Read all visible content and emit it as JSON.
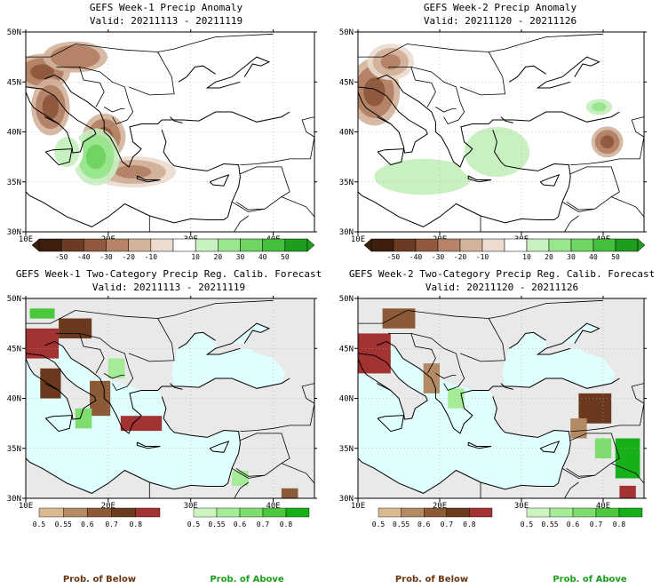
{
  "chart_data": [
    {
      "type": "heatmap",
      "title": "GEFS Week-1 Precip Anomaly",
      "subtitle": "Valid: 20211113 - 20211119",
      "lon_ticks": [
        "10E",
        "20E",
        "30E",
        "40E"
      ],
      "lat_ticks": [
        "30N",
        "35N",
        "40N",
        "45N",
        "50N"
      ],
      "colorbar": {
        "ticks": [
          "-50",
          "-40",
          "-30",
          "-20",
          "-10",
          "10",
          "20",
          "30",
          "40",
          "50"
        ],
        "colors": [
          "#3d1f10",
          "#6b3b24",
          "#8f5a3e",
          "#b58468",
          "#d3b39b",
          "#ecdccf",
          "#ffffff",
          "#c8f0c0",
          "#9ae68f",
          "#6fd462",
          "#44bf3c",
          "#1e9e1e"
        ]
      },
      "blobs": [
        {
          "lon": 12,
          "lat": 46,
          "rx": 2.6,
          "ry": 1.4,
          "value": -40
        },
        {
          "lon": 16,
          "lat": 47.5,
          "rx": 3,
          "ry": 1.2,
          "value": -30
        },
        {
          "lon": 13,
          "lat": 42.5,
          "rx": 1.8,
          "ry": 2.2,
          "value": -35
        },
        {
          "lon": 19.5,
          "lat": 39.5,
          "rx": 2,
          "ry": 1.8,
          "value": -35
        },
        {
          "lon": 23,
          "lat": 36,
          "rx": 4,
          "ry": 1.2,
          "value": -25
        },
        {
          "lon": 18.5,
          "lat": 37.5,
          "rx": 2.2,
          "ry": 2.2,
          "value": 35
        },
        {
          "lon": 15,
          "lat": 38,
          "rx": 1.5,
          "ry": 1.5,
          "value": 15
        }
      ]
    },
    {
      "type": "heatmap",
      "title": "GEFS Week-2 Precip Anomaly",
      "subtitle": "Valid: 20211120 - 20211126",
      "lon_ticks": [
        "10E",
        "20E",
        "30E",
        "40E"
      ],
      "lat_ticks": [
        "30N",
        "35N",
        "40N",
        "45N",
        "50N"
      ],
      "colorbar": {
        "ticks": [
          "-50",
          "-40",
          "-30",
          "-20",
          "-10",
          "10",
          "20",
          "30",
          "40",
          "50"
        ],
        "colors": [
          "#3d1f10",
          "#6b3b24",
          "#8f5a3e",
          "#b58468",
          "#d3b39b",
          "#ecdccf",
          "#ffffff",
          "#c8f0c0",
          "#9ae68f",
          "#6fd462",
          "#44bf3c",
          "#1e9e1e"
        ]
      },
      "blobs": [
        {
          "lon": 12,
          "lat": 44,
          "rx": 2.4,
          "ry": 2.6,
          "value": -40
        },
        {
          "lon": 14,
          "lat": 47,
          "rx": 2.2,
          "ry": 1.4,
          "value": -25
        },
        {
          "lon": 18,
          "lat": 35.5,
          "rx": 6,
          "ry": 1.8,
          "value": 15
        },
        {
          "lon": 27,
          "lat": 38,
          "rx": 4,
          "ry": 2.5,
          "value": 15
        },
        {
          "lon": 40.5,
          "lat": 39,
          "rx": 1.5,
          "ry": 1.2,
          "value": -40
        },
        {
          "lon": 39.5,
          "lat": 42.5,
          "rx": 1.6,
          "ry": 0.8,
          "value": 25
        }
      ]
    },
    {
      "type": "heatmap",
      "title": "GEFS Week-1 Two-Category Precip Reg. Calib. Forecast",
      "subtitle": "Valid: 20211113 - 20211119",
      "lon_ticks": [
        "10E",
        "20E",
        "30E",
        "40E"
      ],
      "lat_ticks": [
        "30N",
        "35N",
        "40N",
        "45N",
        "50N"
      ],
      "below_colorbar": {
        "ticks": [
          "0.5",
          "0.55",
          "0.6",
          "0.7",
          "0.8"
        ],
        "colors": [
          "#d9b98f",
          "#b48a64",
          "#8c5a37",
          "#6b3a1e",
          "#a33333"
        ]
      },
      "above_colorbar": {
        "ticks": [
          "0.5",
          "0.55",
          "0.6",
          "0.7",
          "0.8"
        ],
        "colors": [
          "#ccf5c0",
          "#a6ec98",
          "#7fdd70",
          "#4cc83f",
          "#18b018"
        ]
      },
      "cells": [
        {
          "lon": 12,
          "lat": 45.5,
          "w": 4,
          "h": 3,
          "category": "below",
          "prob": 0.8
        },
        {
          "lon": 16,
          "lat": 47,
          "w": 4,
          "h": 2,
          "category": "below",
          "prob": 0.7
        },
        {
          "lon": 13,
          "lat": 41.5,
          "w": 2.5,
          "h": 3,
          "category": "below",
          "prob": 0.7
        },
        {
          "lon": 19,
          "lat": 40,
          "w": 2.5,
          "h": 3.5,
          "category": "below",
          "prob": 0.6
        },
        {
          "lon": 24,
          "lat": 37.5,
          "w": 5,
          "h": 1.5,
          "category": "below",
          "prob": 0.8
        },
        {
          "lon": 17,
          "lat": 38,
          "w": 2,
          "h": 2,
          "category": "above",
          "prob": 0.6
        },
        {
          "lon": 12,
          "lat": 48.5,
          "w": 3,
          "h": 1,
          "category": "above",
          "prob": 0.7
        },
        {
          "lon": 21,
          "lat": 43,
          "w": 2,
          "h": 2,
          "category": "above",
          "prob": 0.55
        },
        {
          "lon": 36,
          "lat": 32,
          "w": 2,
          "h": 1.5,
          "category": "above",
          "prob": 0.55
        },
        {
          "lon": 42,
          "lat": 30.5,
          "w": 2,
          "h": 1,
          "category": "below",
          "prob": 0.6
        }
      ],
      "below_label": "Prob. of Below",
      "above_label": "Prob. of Above"
    },
    {
      "type": "heatmap",
      "title": "GEFS Week-2 Two-Category Precip Reg. Calib. Forecast",
      "subtitle": "Valid: 20211120 - 20211126",
      "lon_ticks": [
        "10E",
        "20E",
        "30E",
        "40E"
      ],
      "lat_ticks": [
        "30N",
        "35N",
        "40N",
        "45N",
        "50N"
      ],
      "below_colorbar": {
        "ticks": [
          "0.5",
          "0.55",
          "0.6",
          "0.7",
          "0.8"
        ],
        "colors": [
          "#d9b98f",
          "#b48a64",
          "#8c5a37",
          "#6b3a1e",
          "#a33333"
        ]
      },
      "above_colorbar": {
        "ticks": [
          "0.5",
          "0.55",
          "0.6",
          "0.7",
          "0.8"
        ],
        "colors": [
          "#ccf5c0",
          "#a6ec98",
          "#7fdd70",
          "#4cc83f",
          "#18b018"
        ]
      },
      "cells": [
        {
          "lon": 12,
          "lat": 44.5,
          "w": 4,
          "h": 4,
          "category": "below",
          "prob": 0.8
        },
        {
          "lon": 15,
          "lat": 48,
          "w": 4,
          "h": 2,
          "category": "below",
          "prob": 0.6
        },
        {
          "lon": 19,
          "lat": 42,
          "w": 2,
          "h": 3,
          "category": "below",
          "prob": 0.55
        },
        {
          "lon": 22,
          "lat": 40,
          "w": 2,
          "h": 2,
          "category": "above",
          "prob": 0.55
        },
        {
          "lon": 39,
          "lat": 39,
          "w": 4,
          "h": 3,
          "category": "below",
          "prob": 0.7
        },
        {
          "lon": 43,
          "lat": 34,
          "w": 3,
          "h": 4,
          "category": "above",
          "prob": 0.8
        },
        {
          "lon": 40,
          "lat": 35,
          "w": 2,
          "h": 2,
          "category": "above",
          "prob": 0.6
        },
        {
          "lon": 43,
          "lat": 30.5,
          "w": 2,
          "h": 1.5,
          "category": "below",
          "prob": 0.8
        },
        {
          "lon": 37,
          "lat": 37,
          "w": 2,
          "h": 2,
          "category": "below",
          "prob": 0.55
        }
      ],
      "below_label": "Prob. of Below",
      "above_label": "Prob. of Above"
    }
  ]
}
